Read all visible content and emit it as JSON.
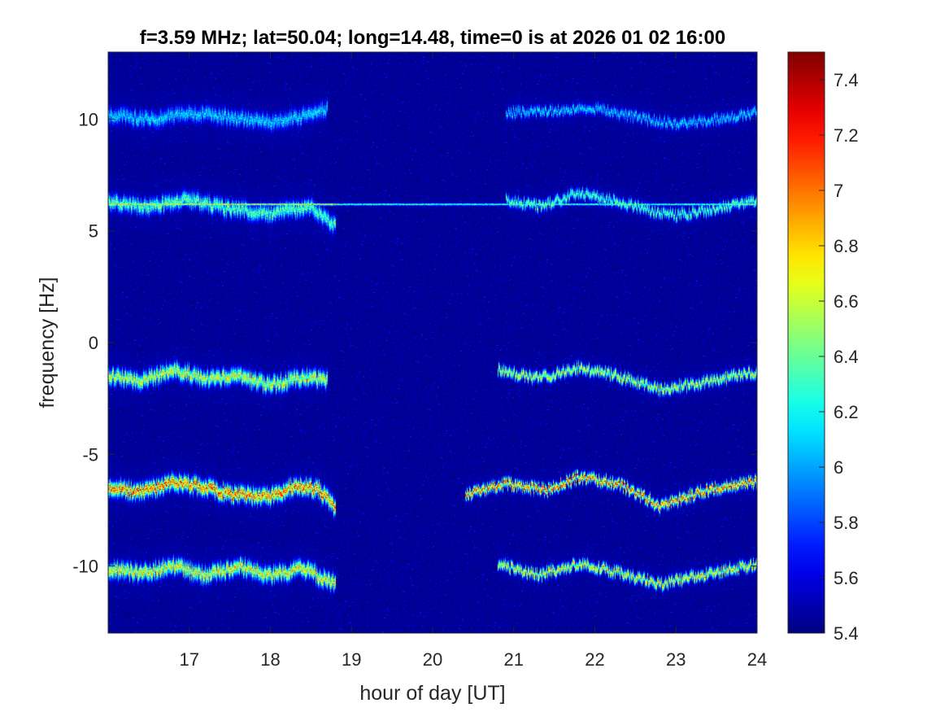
{
  "chart_data": {
    "type": "heatmap",
    "title": "f=3.59 MHz;  lat=50.04; long=14.48, time=0 is at 2026 01 02 16:00",
    "xlabel": "hour of day [UT]",
    "ylabel": "frequency [Hz]",
    "xlim": [
      16,
      24
    ],
    "ylim": [
      -13,
      13
    ],
    "x_ticks": [
      17,
      18,
      19,
      20,
      21,
      22,
      23,
      24
    ],
    "y_ticks": [
      -10,
      -5,
      0,
      5,
      10
    ],
    "colorbar": {
      "range": [
        5.4,
        7.5
      ],
      "ticks": [
        "5.4",
        "5.6",
        "5.8",
        "6",
        "6.2",
        "6.4",
        "6.6",
        "6.8",
        "7",
        "7.2",
        "7.4"
      ],
      "colormap": "jet"
    },
    "background_value": 5.45,
    "features": [
      {
        "name": "constant line",
        "segments": [
          [
            16.0,
            18.8
          ],
          [
            18.8,
            24.0
          ]
        ],
        "y": [
          6.2,
          6.2
        ],
        "intensity": 6.9
      },
      {
        "name": "trace +10 Hz",
        "x": [
          16.0,
          16.5,
          17.0,
          17.5,
          18.0,
          18.5,
          18.7,
          20.9,
          21.5,
          22.0,
          22.5,
          23.0,
          23.5,
          24.0
        ],
        "y": [
          10.2,
          10.0,
          10.3,
          10.1,
          9.9,
          10.2,
          10.5,
          10.3,
          10.4,
          10.5,
          10.1,
          9.8,
          10.0,
          10.3
        ],
        "intensity": 6.2
      },
      {
        "name": "trace +6 Hz",
        "x": [
          16.0,
          16.5,
          17.0,
          17.5,
          18.0,
          18.5,
          18.8,
          20.9,
          21.3,
          21.8,
          22.3,
          22.7,
          23.0,
          23.5,
          24.0
        ],
        "y": [
          6.3,
          6.1,
          6.4,
          6.0,
          5.8,
          6.1,
          5.2,
          6.4,
          6.1,
          6.7,
          6.3,
          5.9,
          5.7,
          6.0,
          6.4
        ],
        "intensity": 6.5
      },
      {
        "name": "trace -1.5 Hz",
        "x": [
          16.0,
          16.4,
          16.8,
          17.2,
          17.6,
          18.0,
          18.4,
          18.7,
          20.8,
          21.3,
          21.8,
          22.3,
          22.8,
          23.3,
          23.7,
          24.0
        ],
        "y": [
          -1.5,
          -1.7,
          -1.2,
          -1.6,
          -1.5,
          -1.9,
          -1.5,
          -1.7,
          -1.2,
          -1.6,
          -1.1,
          -1.5,
          -2.1,
          -1.8,
          -1.5,
          -1.3
        ],
        "intensity": 6.8
      },
      {
        "name": "trace -6.5 Hz",
        "x": [
          16.0,
          16.4,
          16.8,
          17.2,
          17.6,
          18.0,
          18.3,
          18.6,
          18.8,
          20.4,
          20.9,
          21.4,
          21.8,
          22.3,
          22.8,
          23.2,
          23.6,
          24.0
        ],
        "y": [
          -6.4,
          -6.7,
          -6.2,
          -6.5,
          -6.8,
          -6.9,
          -6.4,
          -6.6,
          -7.4,
          -6.8,
          -6.3,
          -6.6,
          -6.0,
          -6.3,
          -7.3,
          -6.8,
          -6.4,
          -6.2
        ],
        "intensity": 7.2
      },
      {
        "name": "trace -10 Hz",
        "x": [
          16.0,
          16.4,
          16.8,
          17.2,
          17.6,
          18.0,
          18.4,
          18.8,
          20.8,
          21.3,
          21.8,
          22.3,
          22.8,
          23.3,
          23.7,
          24.0
        ],
        "y": [
          -10.1,
          -10.3,
          -10.0,
          -10.4,
          -10.0,
          -10.4,
          -10.1,
          -10.8,
          -9.9,
          -10.4,
          -9.9,
          -10.3,
          -10.8,
          -10.4,
          -10.1,
          -9.9
        ],
        "intensity": 6.9
      }
    ]
  }
}
